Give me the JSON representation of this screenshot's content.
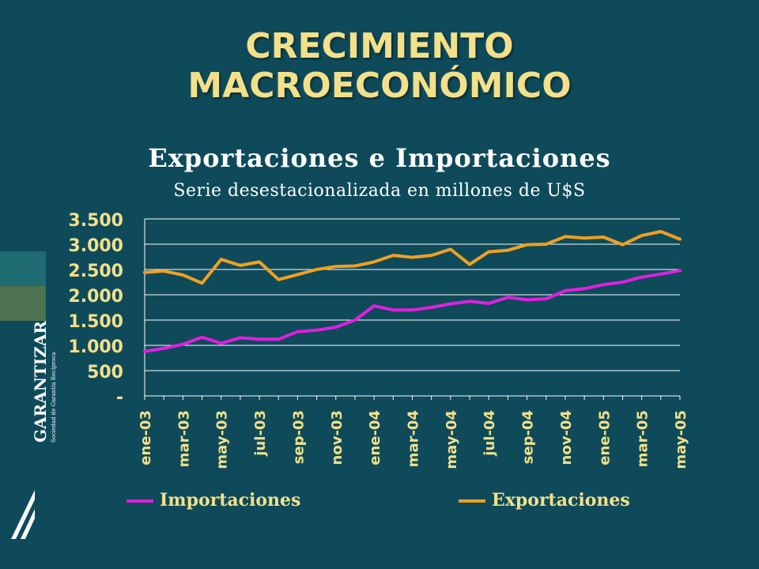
{
  "slide": {
    "title_line1": "CRECIMIENTO",
    "title_line2": "MACROECONÓMICO",
    "logo_name": "GARANTIZAR",
    "logo_subtitle": "Sociedad de Garantía Recíproca"
  },
  "colors": {
    "background": "#0e4a5a",
    "title": "#f2e08a",
    "importaciones": "#e020e0",
    "exportaciones": "#f0a020",
    "grid": "#ffffff"
  },
  "chart_data": {
    "type": "line",
    "title": "Exportaciones e Importaciones",
    "subtitle": "Serie desestacionalizada en millones de U$S",
    "ylim": [
      0,
      3500
    ],
    "yticks": [
      "-",
      "500",
      "1.000",
      "1.500",
      "2.000",
      "2.500",
      "3.000",
      "3.500"
    ],
    "ytick_values": [
      0,
      500,
      1000,
      1500,
      2000,
      2500,
      3000,
      3500
    ],
    "x": [
      "ene-03",
      "feb-03",
      "mar-03",
      "abr-03",
      "may-03",
      "jun-03",
      "jul-03",
      "ago-03",
      "sep-03",
      "oct-03",
      "nov-03",
      "dic-03",
      "ene-04",
      "feb-04",
      "mar-04",
      "abr-04",
      "may-04",
      "jun-04",
      "jul-04",
      "ago-04",
      "sep-04",
      "oct-04",
      "nov-04",
      "dic-04",
      "ene-05",
      "feb-05",
      "mar-05",
      "abr-05",
      "may-05"
    ],
    "xtick_labels": [
      "ene-03",
      "mar-03",
      "may-03",
      "jul-03",
      "sep-03",
      "nov-03",
      "ene-04",
      "mar-04",
      "may-04",
      "jul-04",
      "sep-04",
      "nov-04",
      "ene-05",
      "mar-05",
      "may-05"
    ],
    "grid": true,
    "legend_position": "bottom",
    "series": [
      {
        "name": "Importaciones",
        "color": "#e020e0",
        "values": [
          880,
          940,
          1020,
          1160,
          1040,
          1150,
          1120,
          1120,
          1270,
          1300,
          1360,
          1500,
          1780,
          1700,
          1700,
          1750,
          1820,
          1870,
          1830,
          1950,
          1900,
          1920,
          2080,
          2120,
          2200,
          2250,
          2350,
          2410,
          2480
        ]
      },
      {
        "name": "Exportaciones",
        "color": "#f0a020",
        "values": [
          2440,
          2470,
          2390,
          2230,
          2700,
          2580,
          2650,
          2300,
          2400,
          2500,
          2560,
          2570,
          2650,
          2780,
          2740,
          2780,
          2900,
          2600,
          2850,
          2880,
          2990,
          3000,
          3150,
          3120,
          3140,
          2990,
          3170,
          3250,
          3100
        ]
      }
    ]
  }
}
